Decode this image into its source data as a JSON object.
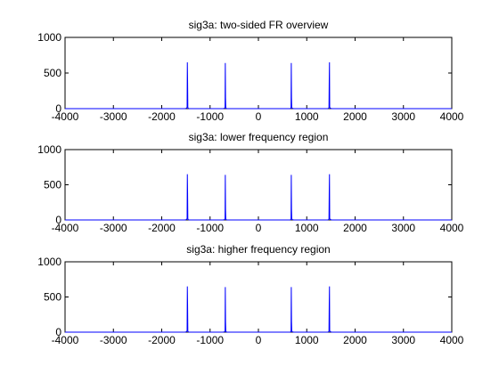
{
  "chart_data": [
    {
      "type": "line",
      "title": "sig3a: two-sided FR overview",
      "xlabel": "",
      "ylabel": "",
      "xlim": [
        -4000,
        4000
      ],
      "ylim": [
        0,
        1000
      ],
      "xticks": [
        "-4000",
        "-3000",
        "-2000",
        "-1000",
        "0",
        "1000",
        "2000",
        "3000",
        "4000"
      ],
      "yticks": [
        "0",
        "500",
        "1000"
      ],
      "grid": false,
      "color": "#0000ff",
      "series": [
        {
          "x": [
            -4000,
            -1520,
            -1490,
            -1475,
            -1470,
            -1465,
            -1460,
            -1455,
            -1440,
            -1410,
            -730,
            -700,
            -690,
            -685,
            -680,
            -675,
            -670,
            -660,
            -630,
            630,
            660,
            670,
            675,
            680,
            685,
            690,
            700,
            730,
            1410,
            1440,
            1455,
            1460,
            1465,
            1470,
            1475,
            1490,
            1520,
            4000
          ],
          "y": [
            0,
            0,
            5,
            20,
            650,
            400,
            20,
            5,
            2,
            0,
            0,
            5,
            20,
            640,
            150,
            20,
            5,
            2,
            0,
            0,
            2,
            5,
            20,
            640,
            150,
            20,
            5,
            0,
            0,
            2,
            5,
            20,
            400,
            650,
            20,
            5,
            0,
            0
          ]
        }
      ]
    },
    {
      "type": "line",
      "title": "sig3a: lower frequency region",
      "xlabel": "",
      "ylabel": "",
      "xlim": [
        -4000,
        4000
      ],
      "ylim": [
        0,
        1000
      ],
      "xticks": [
        "-4000",
        "-3000",
        "-2000",
        "-1000",
        "0",
        "1000",
        "2000",
        "3000",
        "4000"
      ],
      "yticks": [
        "0",
        "500",
        "1000"
      ],
      "grid": false,
      "color": "#0000ff",
      "series": [
        {
          "x": [
            -4000,
            -1520,
            -1490,
            -1475,
            -1470,
            -1465,
            -1460,
            -1455,
            -1440,
            -1410,
            -730,
            -700,
            -690,
            -685,
            -680,
            -675,
            -670,
            -660,
            -630,
            630,
            660,
            670,
            675,
            680,
            685,
            690,
            700,
            730,
            1410,
            1440,
            1455,
            1460,
            1465,
            1470,
            1475,
            1490,
            1520,
            4000
          ],
          "y": [
            0,
            0,
            5,
            20,
            650,
            400,
            20,
            5,
            2,
            0,
            0,
            5,
            20,
            640,
            150,
            20,
            5,
            2,
            0,
            0,
            2,
            5,
            20,
            640,
            150,
            20,
            5,
            0,
            0,
            2,
            5,
            20,
            400,
            650,
            20,
            5,
            0,
            0
          ]
        }
      ]
    },
    {
      "type": "line",
      "title": "sig3a: higher frequency region",
      "xlabel": "",
      "ylabel": "",
      "xlim": [
        -4000,
        4000
      ],
      "ylim": [
        0,
        1000
      ],
      "xticks": [
        "-4000",
        "-3000",
        "-2000",
        "-1000",
        "0",
        "1000",
        "2000",
        "3000",
        "4000"
      ],
      "yticks": [
        "0",
        "500",
        "1000"
      ],
      "grid": false,
      "color": "#0000ff",
      "series": [
        {
          "x": [
            -4000,
            -1520,
            -1490,
            -1475,
            -1470,
            -1465,
            -1460,
            -1455,
            -1440,
            -1410,
            -730,
            -700,
            -690,
            -685,
            -680,
            -675,
            -670,
            -660,
            -630,
            630,
            660,
            670,
            675,
            680,
            685,
            690,
            700,
            730,
            1410,
            1440,
            1455,
            1460,
            1465,
            1470,
            1475,
            1490,
            1520,
            4000
          ],
          "y": [
            0,
            0,
            5,
            20,
            650,
            400,
            20,
            5,
            2,
            0,
            0,
            5,
            20,
            640,
            150,
            20,
            5,
            2,
            0,
            0,
            2,
            5,
            20,
            640,
            150,
            20,
            5,
            0,
            0,
            2,
            5,
            20,
            400,
            650,
            20,
            5,
            0,
            0
          ]
        }
      ]
    }
  ]
}
